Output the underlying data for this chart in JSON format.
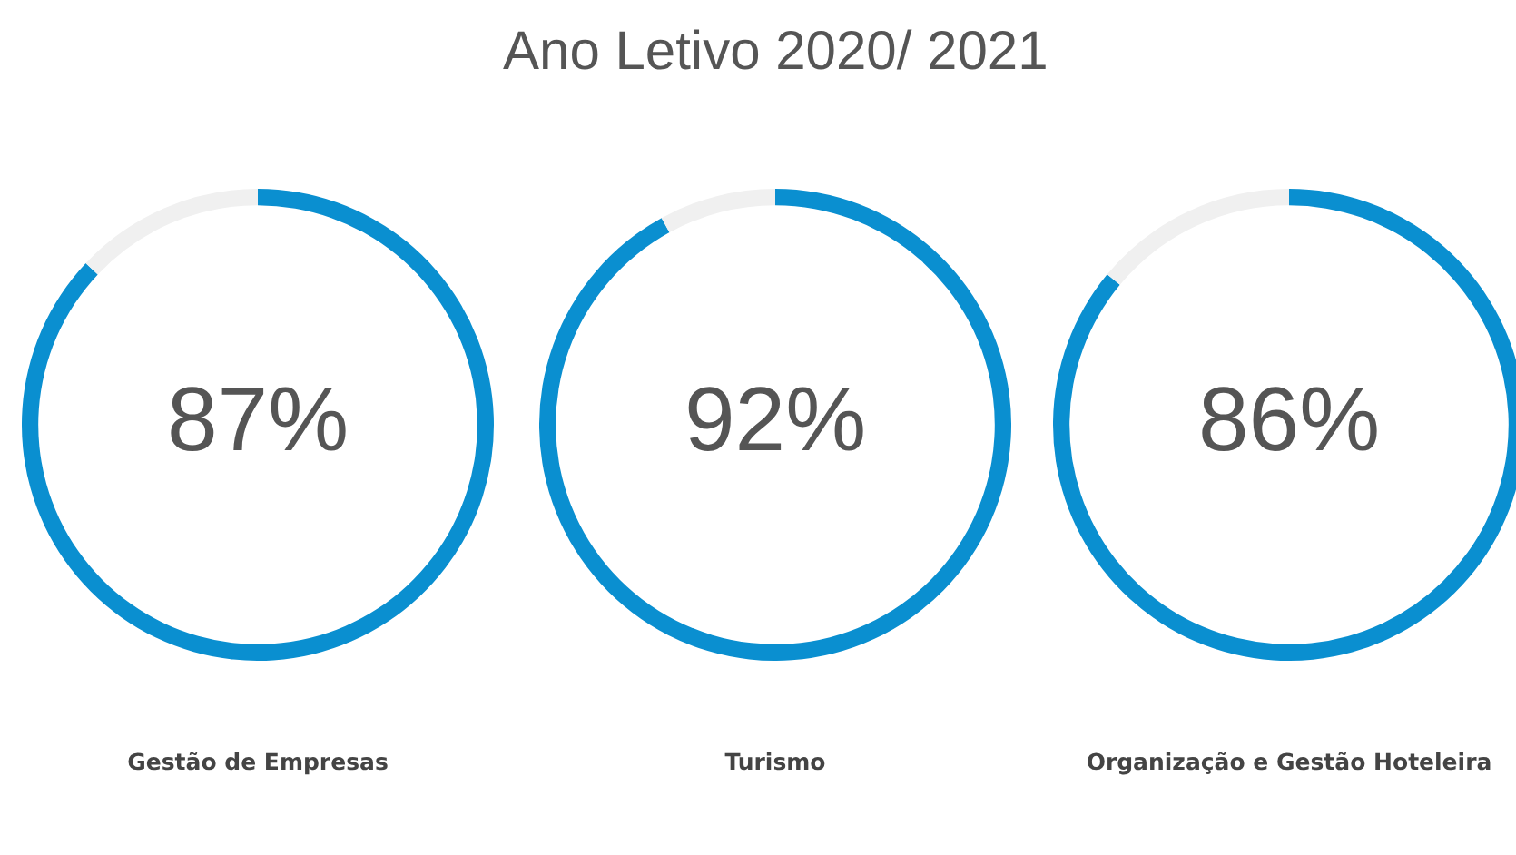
{
  "chart_data": [
    {
      "type": "donut",
      "xlabel": "Gestão de Empresas",
      "categories": [
        null,
        null
      ],
      "values": [
        87,
        13
      ],
      "colors": [
        "#0a8fd0",
        "#f0f0f0"
      ],
      "value_labels": [
        "87%",
        null
      ],
      "legend": false
    },
    {
      "type": "donut",
      "title": "Ano Letivo 2020/ 2021",
      "xlabel": "Turismo",
      "categories": [
        null,
        null
      ],
      "values": [
        92,
        8
      ],
      "colors": [
        "#0a8fd0",
        "#f0f0f0"
      ],
      "value_labels": [
        "92%",
        null
      ],
      "legend": false
    },
    {
      "type": "donut",
      "xlabel": "Organização e Gestão Hoteleira",
      "categories": [
        null,
        null
      ],
      "values": [
        86,
        14
      ],
      "colors": [
        "#0a8fd0",
        "#f0f0f0"
      ],
      "value_labels": [
        "86%",
        null
      ],
      "legend": false
    }
  ]
}
